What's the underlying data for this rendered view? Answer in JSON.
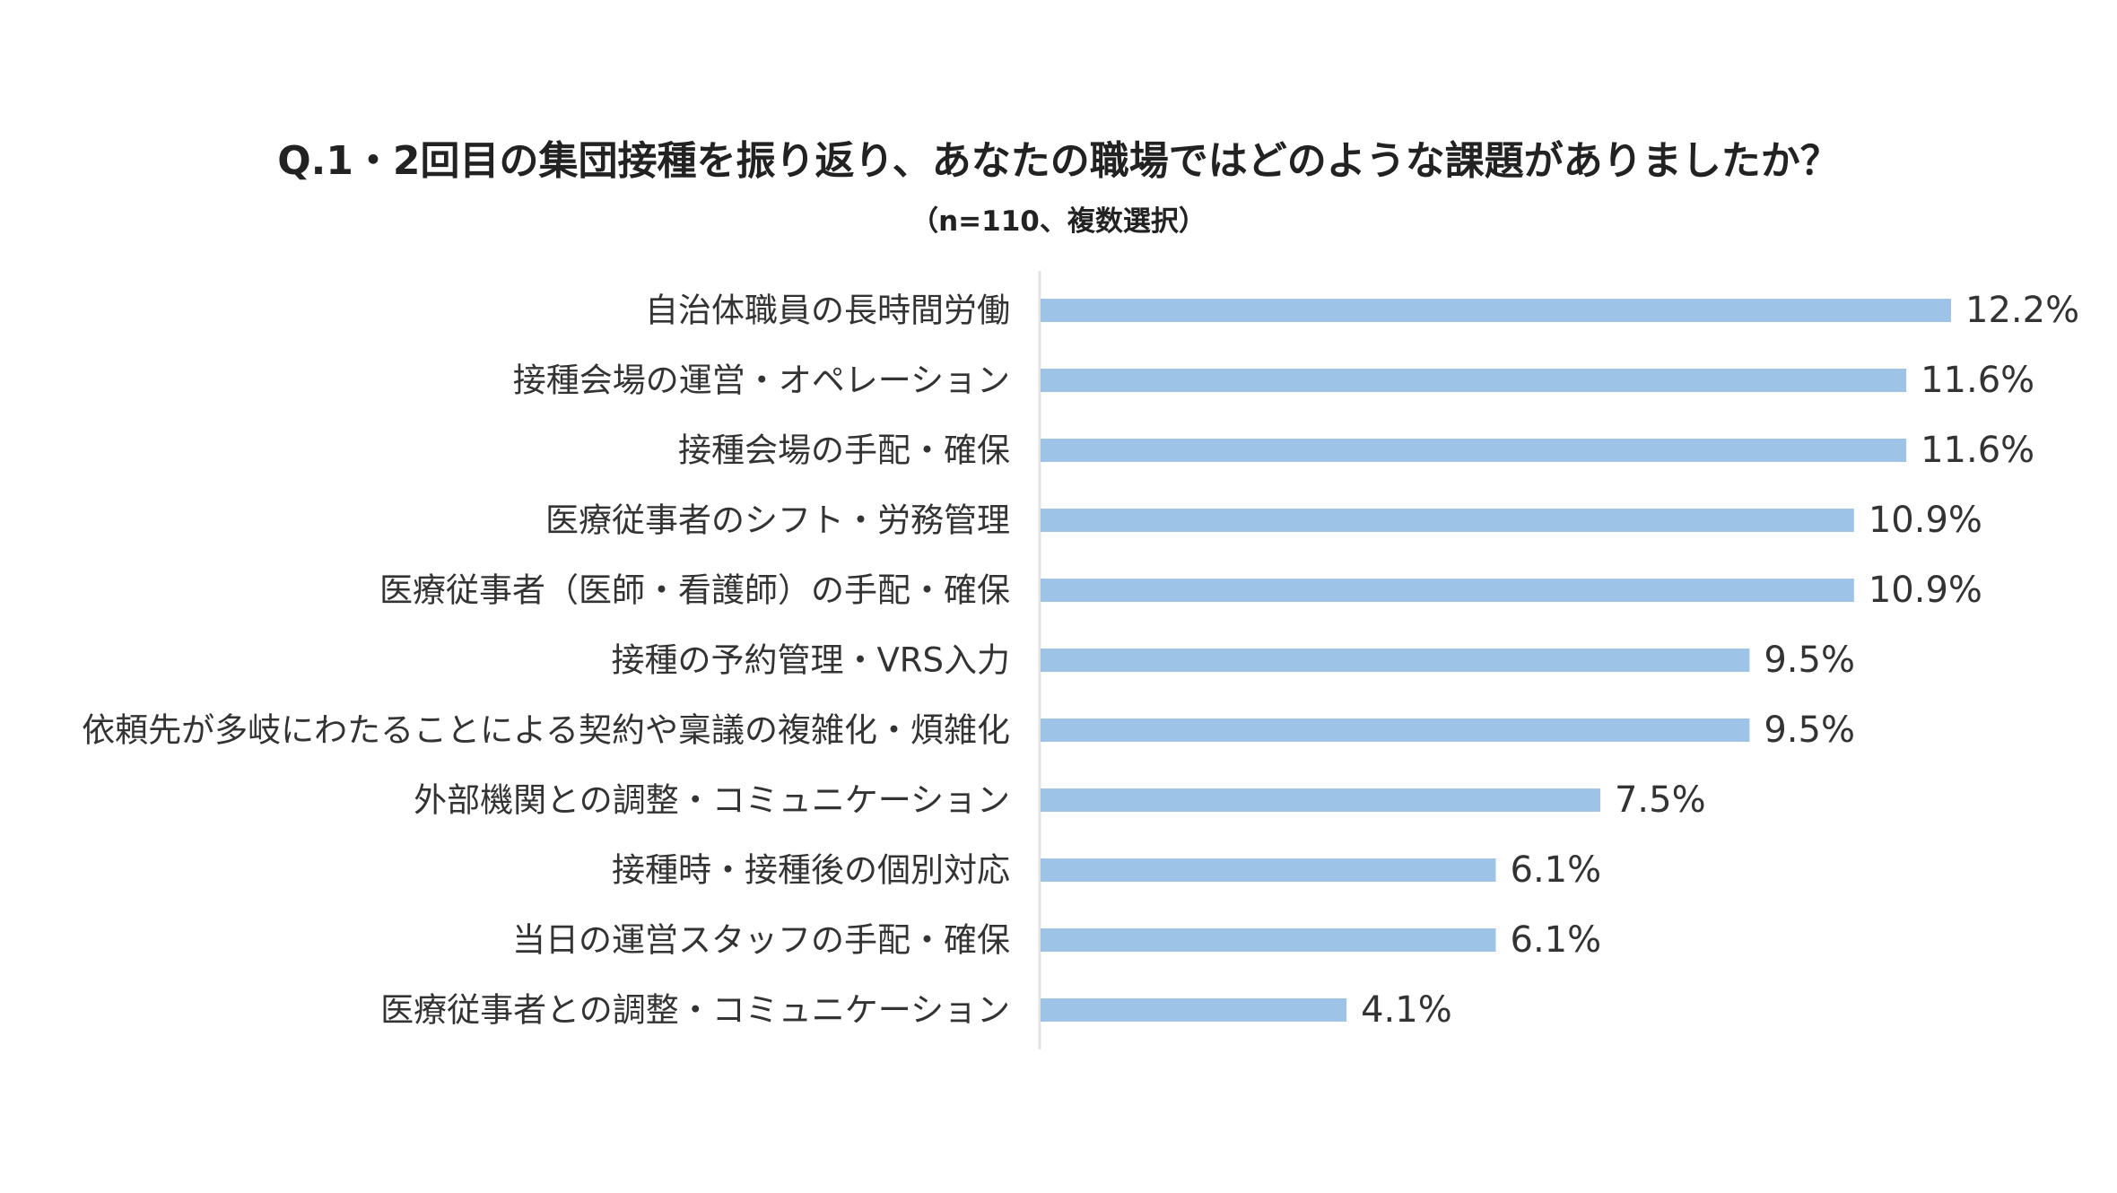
{
  "chart_data": {
    "type": "bar",
    "orientation": "horizontal",
    "title": "Q.1・2回目の集団接種を振り返り、あなたの職場ではどのような課題がありましたか？",
    "subtitle": "（n=110、複数選択）",
    "categories": [
      "自治体職員の長時間労働",
      "接種会場の運営・オペレーション",
      "接種会場の手配・確保",
      "医療従事者のシフト・労務管理",
      "医療従事者（医師・看護師）の手配・確保",
      "接種の予約管理・VRS入力",
      "依頼先が多岐にわたることによる契約や稟議の複雑化・煩雑化",
      "外部機関との調整・コミュニケーション",
      "接種時・接種後の個別対応",
      "当日の運営スタッフの手配・確保",
      "医療従事者との調整・コミュニケーション"
    ],
    "values": [
      12.2,
      11.6,
      11.6,
      10.9,
      10.9,
      9.5,
      9.5,
      7.5,
      6.1,
      6.1,
      4.1
    ],
    "value_labels": [
      "12.2%",
      "11.6%",
      "11.6%",
      "10.9%",
      "10.9%",
      "9.5%",
      "9.5%",
      "7.5%",
      "6.1%",
      "6.1%",
      "4.1%"
    ],
    "xlim": [
      0,
      12.2
    ],
    "grid": false,
    "legend": "none",
    "bar_color": "#9dc3e6",
    "axis_color": "#e3e3e3"
  }
}
